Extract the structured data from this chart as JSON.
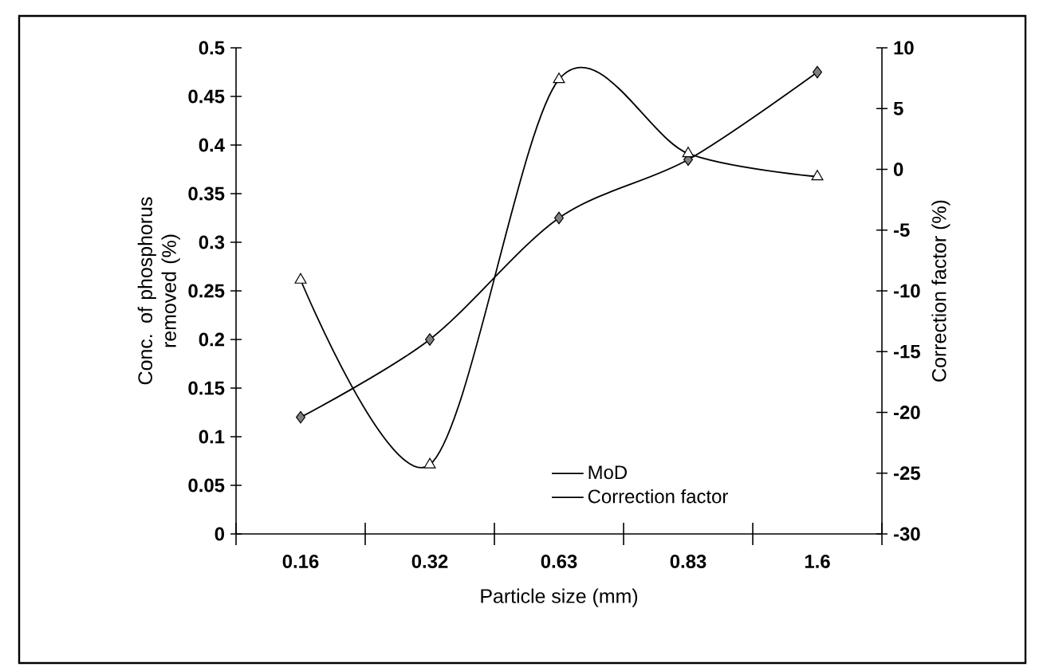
{
  "chart_data": {
    "type": "line",
    "xlabel": "Particle size (mm)",
    "ylabel": "Conc. of phosphorus removed (%)",
    "y2label": "Correction factor (%)",
    "categories": [
      "0.16",
      "0.32",
      "0.63",
      "0.83",
      "1.6"
    ],
    "series": [
      {
        "name": "MoD",
        "color": "#808080",
        "marker": "diamond",
        "values": [
          0.12,
          0.2,
          0.325,
          0.385,
          0.475
        ]
      },
      {
        "name": "Correction factor",
        "color": "#ffffff",
        "marker": "triangle",
        "axis": "y2",
        "values": [
          -9.1,
          -24.3,
          7.4,
          1.3,
          -0.6
        ]
      }
    ],
    "ylim": [
      0,
      0.5
    ],
    "yticks": [
      0,
      0.05,
      0.1,
      0.15,
      0.2,
      0.25,
      0.3,
      0.35,
      0.4,
      0.45,
      0.5
    ],
    "y2lim": [
      -30,
      10
    ],
    "y2ticks": [
      -30,
      -25,
      -20,
      -15,
      -10,
      -5,
      0,
      5,
      10
    ],
    "legend": "bottom"
  }
}
